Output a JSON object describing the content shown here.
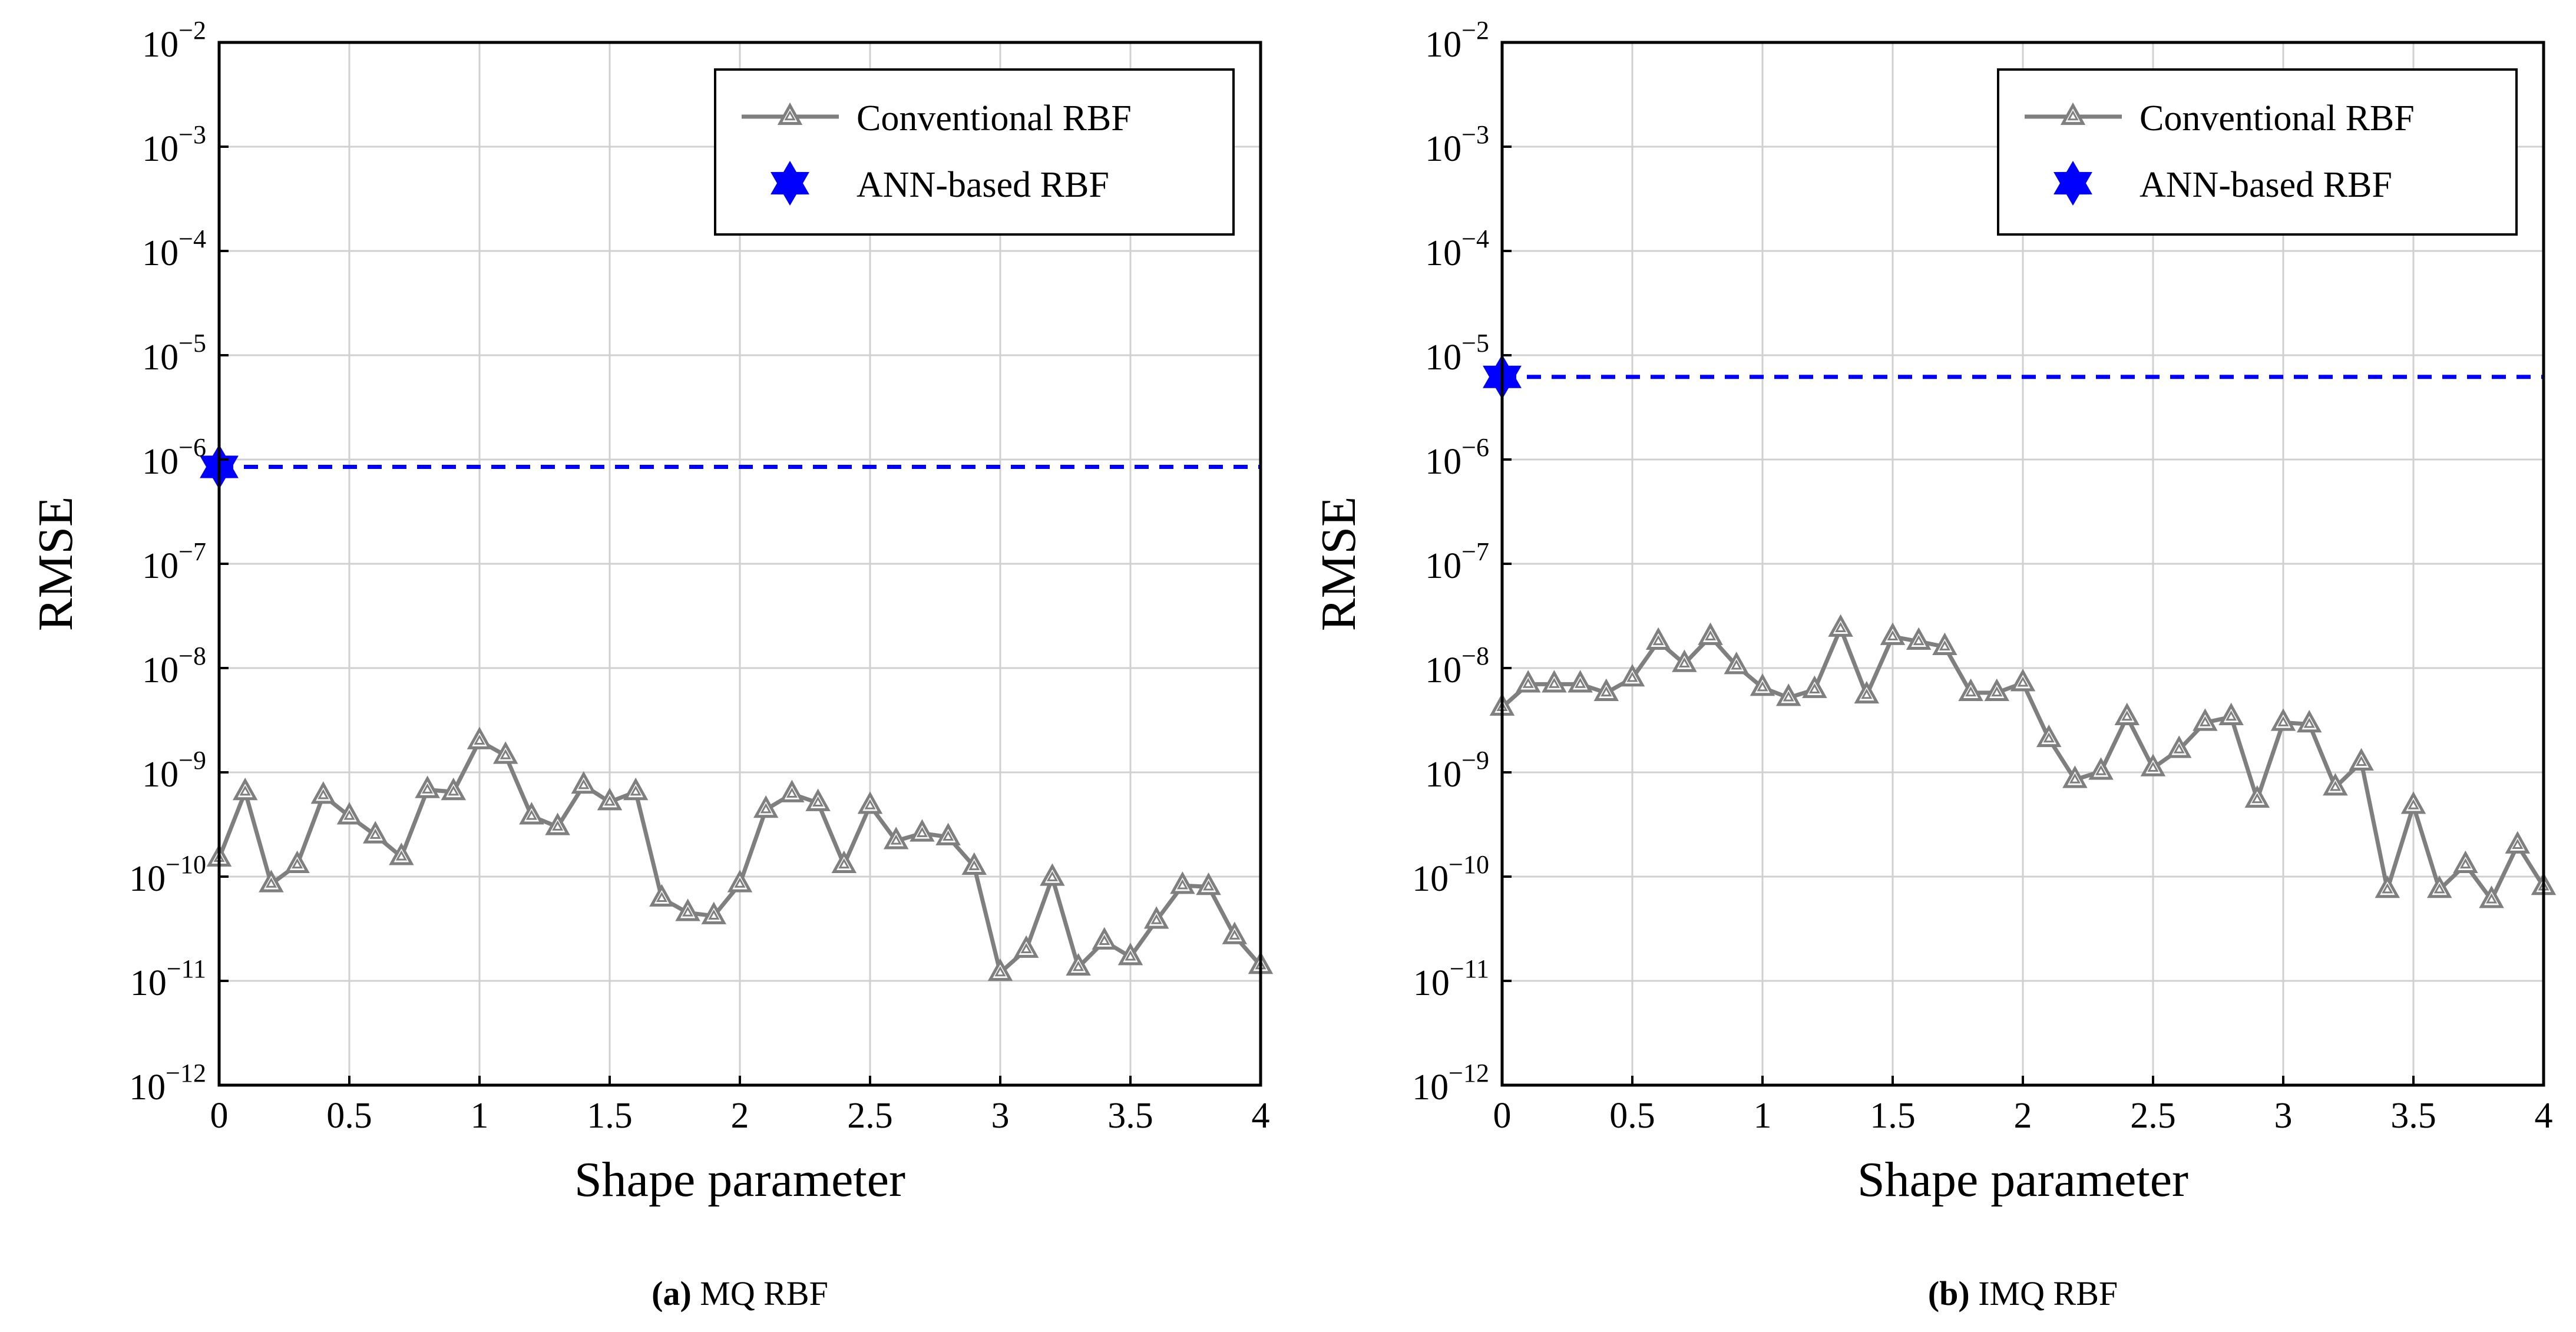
{
  "colors": {
    "conventional": "#7f7f7f",
    "ann": "#0000ff",
    "grid": "#d0d0d0",
    "axis": "#000000"
  },
  "chart_data": [
    {
      "type": "line",
      "panel": "a",
      "caption_label": "(a)",
      "caption_text": "MQ RBF",
      "xlabel": "Shape parameter",
      "ylabel": "RMSE",
      "xlim": [
        0,
        4
      ],
      "xticks": [
        "0",
        "0.5",
        "1",
        "1.5",
        "2",
        "2.5",
        "3",
        "3.5",
        "4"
      ],
      "yscale": "log",
      "ylim_exp": [
        -12,
        -2
      ],
      "yticks_exp": [
        "-12",
        "-11",
        "-10",
        "-9",
        "-8",
        "-7",
        "-6",
        "-5",
        "-4",
        "-3",
        "-2"
      ],
      "ytick_base": "10",
      "grid": true,
      "legend": {
        "position": "top-right",
        "entries": [
          "Conventional RBF",
          "ANN-based RBF"
        ]
      },
      "series": [
        {
          "name": "Conventional RBF",
          "marker": "triangle",
          "x": [
            0,
            0.1,
            0.2,
            0.3,
            0.4,
            0.5,
            0.6,
            0.7,
            0.8,
            0.9,
            1.0,
            1.1,
            1.2,
            1.3,
            1.4,
            1.5,
            1.6,
            1.7,
            1.8,
            1.9,
            2.0,
            2.1,
            2.2,
            2.3,
            2.4,
            2.5,
            2.6,
            2.7,
            2.8,
            2.9,
            3.0,
            3.1,
            3.2,
            3.3,
            3.4,
            3.5,
            3.6,
            3.7,
            3.8,
            3.9,
            4.0
          ],
          "values": [
            1.5e-10,
            6.5e-10,
            8.5e-11,
            1.3e-10,
            6e-10,
            3.8e-10,
            2.5e-10,
            1.55e-10,
            6.8e-10,
            6.5e-10,
            2e-09,
            1.45e-09,
            3.8e-10,
            3e-10,
            7.5e-10,
            5.2e-10,
            6.5e-10,
            6.2e-11,
            4.5e-11,
            4.2e-11,
            8.5e-11,
            4.4e-10,
            6.2e-10,
            5.1e-10,
            1.3e-10,
            4.8e-10,
            2.2e-10,
            2.6e-10,
            2.4e-10,
            1.25e-10,
            1.2e-11,
            2e-11,
            9.8e-11,
            1.35e-11,
            2.4e-11,
            1.7e-11,
            3.8e-11,
            8.2e-11,
            8e-11,
            2.7e-11,
            1.4e-11
          ]
        },
        {
          "name": "ANN-based RBF",
          "marker": "star",
          "line": "dashed",
          "x": [
            0
          ],
          "values": [
            8.5e-07
          ]
        }
      ]
    },
    {
      "type": "line",
      "panel": "b",
      "caption_label": "(b)",
      "caption_text": "IMQ RBF",
      "xlabel": "Shape parameter",
      "ylabel": "RMSE",
      "xlim": [
        0,
        4
      ],
      "xticks": [
        "0",
        "0.5",
        "1",
        "1.5",
        "2",
        "2.5",
        "3",
        "3.5",
        "4"
      ],
      "yscale": "log",
      "ylim_exp": [
        -12,
        -2
      ],
      "yticks_exp": [
        "-12",
        "-11",
        "-10",
        "-9",
        "-8",
        "-7",
        "-6",
        "-5",
        "-4",
        "-3",
        "-2"
      ],
      "ytick_base": "10",
      "grid": true,
      "legend": {
        "position": "top-right",
        "entries": [
          "Conventional RBF",
          "ANN-based RBF"
        ]
      },
      "series": [
        {
          "name": "Conventional RBF",
          "marker": "triangle",
          "x": [
            0,
            0.1,
            0.2,
            0.3,
            0.4,
            0.5,
            0.6,
            0.7,
            0.8,
            0.9,
            1.0,
            1.1,
            1.2,
            1.3,
            1.4,
            1.5,
            1.6,
            1.7,
            1.8,
            1.9,
            2.0,
            2.1,
            2.2,
            2.3,
            2.4,
            2.5,
            2.6,
            2.7,
            2.8,
            2.9,
            3.0,
            3.1,
            3.2,
            3.3,
            3.4,
            3.5,
            3.6,
            3.7,
            3.8,
            3.9,
            4.0
          ],
          "values": [
            4.2e-09,
            7e-09,
            7e-09,
            7e-09,
            5.8e-09,
            8e-09,
            1.8e-08,
            1.1e-08,
            2e-08,
            1.05e-08,
            6.5e-09,
            5.2e-09,
            6.2e-09,
            2.4e-08,
            5.5e-09,
            2e-08,
            1.8e-08,
            1.6e-08,
            5.8e-09,
            5.8e-09,
            7.2e-09,
            2.1e-09,
            8.5e-10,
            1.02e-09,
            3.4e-09,
            1.1e-09,
            1.65e-09,
            3e-09,
            3.4e-09,
            5.5e-10,
            3e-09,
            2.9e-09,
            7.2e-10,
            1.25e-09,
            7.5e-11,
            4.8e-10,
            7.5e-11,
            1.3e-10,
            6e-11,
            2e-10,
            8e-11
          ]
        },
        {
          "name": "ANN-based RBF",
          "marker": "star",
          "line": "dashed",
          "x": [
            0
          ],
          "values": [
            6.2e-06
          ]
        }
      ]
    }
  ]
}
